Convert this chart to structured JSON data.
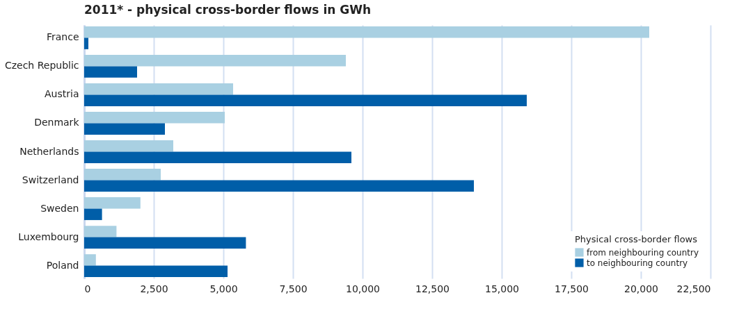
{
  "chart_data": {
    "type": "bar",
    "orientation": "horizontal",
    "title": "2011* - physical cross-border flows in GWh",
    "categories": [
      "France",
      "Czech Republic",
      "Austria",
      "Denmark",
      "Netherlands",
      "Switzerland",
      "Sweden",
      "Luxembourg",
      "Poland"
    ],
    "series": [
      {
        "name": "from neighbouring country",
        "color": "#a9d0e2",
        "values": [
          20300,
          9400,
          5350,
          5050,
          3200,
          2750,
          2020,
          1160,
          420
        ]
      },
      {
        "name": "to neighbouring country",
        "color": "#005ea8",
        "values": [
          150,
          1900,
          15900,
          2900,
          9600,
          14000,
          640,
          5810,
          5150
        ]
      }
    ],
    "legend_title": "Physical cross-border flows",
    "xlim": [
      0,
      22500
    ],
    "xticks": [
      0,
      {
        "value": 2500,
        "label": "2,500"
      },
      {
        "value": 5000,
        "label": "5,000"
      },
      {
        "value": 7500,
        "label": "7,500"
      },
      {
        "value": 10000,
        "label": "10,000"
      },
      {
        "value": 12500,
        "label": "12,500"
      },
      {
        "value": 15000,
        "label": "15,000"
      },
      {
        "value": 17500,
        "label": "17,500"
      },
      {
        "value": 20000,
        "label": "20,000"
      },
      {
        "value": 22500,
        "label": "22,500"
      }
    ],
    "grid": "x",
    "legend": "bottom right"
  }
}
